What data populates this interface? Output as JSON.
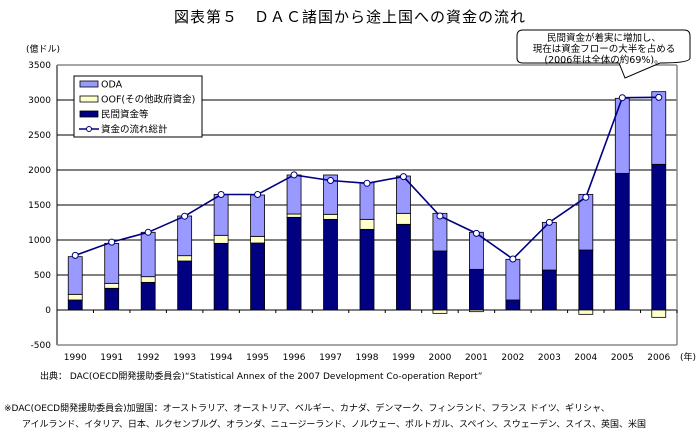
{
  "chart_data": {
    "type": "bar",
    "stacked": true,
    "title": "図表第５　ＤＡＣ諸国から途上国への資金の流れ",
    "ylabel": "(億ドル)",
    "xlabel": "(年)",
    "ylim": [
      -500,
      3500
    ],
    "yticks": [
      -500,
      0,
      500,
      1000,
      1500,
      2000,
      2500,
      3000,
      3500
    ],
    "ytick_labels": [
      "-500",
      "0",
      "500",
      "1000",
      "1500",
      "2000",
      "2500",
      "3000",
      "3500"
    ],
    "grid": true,
    "categories": [
      "1990",
      "1991",
      "1992",
      "1993",
      "1994",
      "1995",
      "1996",
      "1997",
      "1998",
      "1999",
      "2000",
      "2001",
      "2002",
      "2003",
      "2004",
      "2005",
      "2006"
    ],
    "category_labels": [
      "1990",
      "1991",
      "1992",
      "1993",
      "1994",
      "1995",
      "1996",
      "1997",
      "1998",
      "1999",
      "2000",
      "2001",
      "2002",
      "2003",
      "2004",
      "2005",
      "2006"
    ],
    "series": [
      {
        "name": "民間資金等",
        "kind": "bar",
        "color": "#000080",
        "values": [
          143,
          310,
          395,
          700,
          952,
          957,
          1324,
          1295,
          1152,
          1224,
          843,
          581,
          143,
          571,
          857,
          1952,
          2081
        ]
      },
      {
        "name": "OOF(その他政府資金)",
        "kind": "bar",
        "color": "#FFFFCC",
        "values": [
          81,
          71,
          81,
          76,
          115,
          95,
          47,
          72,
          143,
          157,
          -48,
          -24,
          0,
          0,
          -62,
          0,
          -105
        ]
      },
      {
        "name": "ODA",
        "kind": "bar",
        "color": "#9999FF",
        "values": [
          538,
          571,
          634,
          567,
          585,
          591,
          558,
          562,
          524,
          533,
          538,
          529,
          581,
          681,
          795,
          1072,
          1038
        ]
      },
      {
        "name": "資金の流れ総計",
        "kind": "line",
        "color": "#000080",
        "values": [
          780,
          970,
          1110,
          1340,
          1650,
          1650,
          1930,
          1850,
          1810,
          1905,
          1343,
          1095,
          729,
          1252,
          1610,
          3033,
          3038
        ]
      }
    ],
    "legend_position": "top-left",
    "legend": [
      "ODA",
      "OOF(その他政府資金)",
      "民間資金等",
      "資金の流れ総計"
    ],
    "annotation": [
      "民間資金が着実に増加し、",
      "現在は資金フローの大半を占める",
      "(2006年は全体の約69%)。"
    ]
  },
  "footer": {
    "source": "出典：  DAC(OECD開発援助委員会)“Statistical Annex of the 2007 Development Co-operation Report”",
    "note_line1": "※DAC(OECD開発援助委員会)加盟国：オーストラリア、オーストリア、ベルギー、カナダ、デンマーク、フィンランド、フランス ドイツ、ギリシャ、",
    "note_line2": "アイルランド、イタリア、日本、ルクセンブルグ、オランダ、ニュージーランド、ノルウェー、ポルトガル、スペイン、スウェーデン、スイス、英国、米国"
  }
}
